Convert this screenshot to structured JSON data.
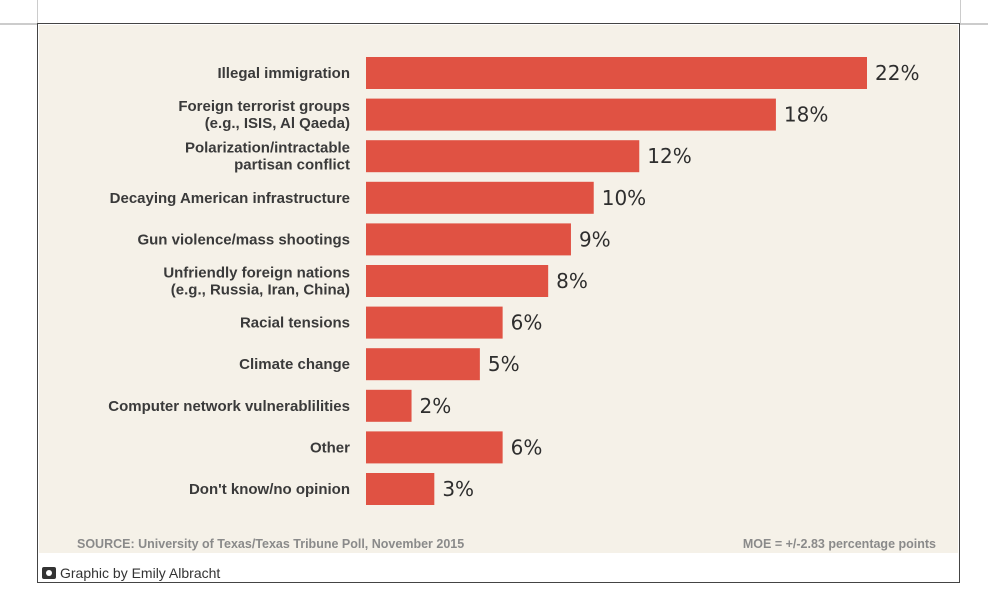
{
  "chart_data": {
    "type": "bar",
    "orientation": "horizontal",
    "categories": [
      [
        "Illegal immigration"
      ],
      [
        "Foreign terrorist groups",
        "(e.g., ISIS, Al Qaeda)"
      ],
      [
        "Polarization/intractable",
        "partisan conflict"
      ],
      [
        "Decaying American infrastructure"
      ],
      [
        "Gun violence/mass shootings"
      ],
      [
        "Unfriendly foreign nations",
        "(e.g., Russia, Iran, China)"
      ],
      [
        "Racial tensions"
      ],
      [
        "Climate change"
      ],
      [
        "Computer network vulnerablilities"
      ],
      [
        "Other"
      ],
      [
        "Don't know/no opinion"
      ]
    ],
    "values": [
      22,
      18,
      12,
      10,
      9,
      8,
      6,
      5,
      2,
      6,
      3
    ],
    "value_labels": [
      "22%",
      "18%",
      "12%",
      "10%",
      "9%",
      "8%",
      "6%",
      "5%",
      "2%",
      "6%",
      "3%"
    ],
    "xlim": [
      0,
      22
    ],
    "grid": false,
    "bar_color": "#e05243",
    "background": "#f5f1e8"
  },
  "footer": {
    "source": "SOURCE: University of Texas/Texas Tribune Poll, November 2015",
    "moe": "MOE = +/-2.83 percentage points"
  },
  "credit": {
    "icon": "camera-icon",
    "text": "Graphic by Emily Albracht"
  }
}
